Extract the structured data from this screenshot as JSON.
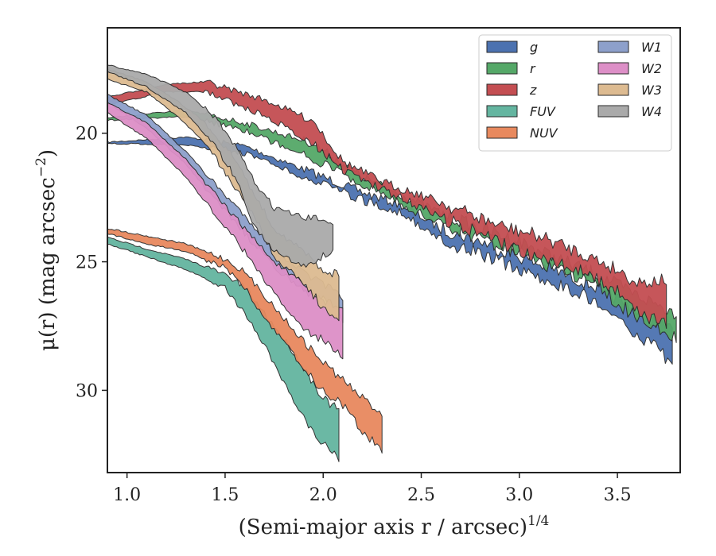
{
  "chart_data": {
    "type": "area",
    "xlabel": "(Semi-major axis r / arcsec)",
    "xlabel_exponent": "1/4",
    "ylabel": "μ(r) (mag arcsec",
    "ylabel_exponent": "−2",
    "ylabel_close": ")",
    "xlim": [
      0.9,
      3.82
    ],
    "ylim": [
      33.2,
      15.9
    ],
    "y_inverted": true,
    "xticks": [
      1.0,
      1.5,
      2.0,
      2.5,
      3.0,
      3.5
    ],
    "xtick_labels": [
      "1.0",
      "1.5",
      "2.0",
      "2.5",
      "3.0",
      "3.5"
    ],
    "yticks": [
      20,
      25,
      30
    ],
    "ytick_labels": [
      "20",
      "25",
      "30"
    ],
    "grid": false,
    "legend_position": "top-right",
    "legend_columns": 2,
    "series": [
      {
        "name": "g",
        "color": "#4c72b0",
        "upper": [
          [
            0.9,
            20.35
          ],
          [
            1.3,
            20.15
          ],
          [
            1.6,
            20.5
          ],
          [
            2.0,
            21.7
          ],
          [
            2.2,
            22.3
          ],
          [
            2.4,
            22.8
          ],
          [
            2.6,
            23.7
          ],
          [
            2.8,
            24.2
          ],
          [
            3.0,
            24.8
          ],
          [
            3.2,
            25.4
          ],
          [
            3.4,
            26.0
          ],
          [
            3.6,
            26.9
          ],
          [
            3.78,
            27.7
          ]
        ],
        "lower": [
          [
            3.78,
            28.9
          ],
          [
            3.6,
            27.8
          ],
          [
            3.4,
            26.5
          ],
          [
            3.2,
            25.9
          ],
          [
            3.0,
            25.3
          ],
          [
            2.8,
            24.7
          ],
          [
            2.6,
            24.2
          ],
          [
            2.4,
            23.1
          ],
          [
            2.2,
            22.6
          ],
          [
            2.0,
            22.0
          ],
          [
            1.6,
            20.8
          ],
          [
            1.3,
            20.45
          ],
          [
            0.9,
            20.4
          ]
        ]
      },
      {
        "name": "r",
        "color": "#55a868",
        "upper": [
          [
            0.9,
            19.4
          ],
          [
            1.3,
            19.1
          ],
          [
            1.6,
            19.6
          ],
          [
            1.95,
            20.4
          ],
          [
            2.2,
            21.7
          ],
          [
            2.4,
            22.4
          ],
          [
            2.6,
            23.1
          ],
          [
            2.8,
            23.7
          ],
          [
            3.0,
            24.2
          ],
          [
            3.2,
            24.9
          ],
          [
            3.4,
            25.5
          ],
          [
            3.6,
            26.3
          ],
          [
            3.8,
            27.0
          ]
        ],
        "lower": [
          [
            3.8,
            27.9
          ],
          [
            3.6,
            27.2
          ],
          [
            3.4,
            26.0
          ],
          [
            3.2,
            25.3
          ],
          [
            3.0,
            24.7
          ],
          [
            2.8,
            24.1
          ],
          [
            2.6,
            23.5
          ],
          [
            2.4,
            22.8
          ],
          [
            2.2,
            22.0
          ],
          [
            1.95,
            21.0
          ],
          [
            1.6,
            19.9
          ],
          [
            1.3,
            19.35
          ],
          [
            0.9,
            19.5
          ]
        ]
      },
      {
        "name": "z",
        "color": "#c44e52",
        "upper": [
          [
            0.9,
            18.6
          ],
          [
            1.2,
            18.1
          ],
          [
            1.4,
            18.0
          ],
          [
            1.7,
            18.7
          ],
          [
            1.95,
            19.5
          ],
          [
            2.1,
            21.1
          ],
          [
            2.3,
            21.9
          ],
          [
            2.5,
            22.4
          ],
          [
            2.7,
            23.0
          ],
          [
            2.9,
            23.6
          ],
          [
            3.1,
            24.0
          ],
          [
            3.3,
            24.6
          ],
          [
            3.5,
            25.3
          ],
          [
            3.6,
            25.8
          ],
          [
            3.75,
            25.7
          ]
        ],
        "lower": [
          [
            3.75,
            27.5
          ],
          [
            3.6,
            27.0
          ],
          [
            3.5,
            26.1
          ],
          [
            3.3,
            25.3
          ],
          [
            3.1,
            24.8
          ],
          [
            2.9,
            24.3
          ],
          [
            2.7,
            23.6
          ],
          [
            2.5,
            22.9
          ],
          [
            2.3,
            22.2
          ],
          [
            2.1,
            21.4
          ],
          [
            1.95,
            20.4
          ],
          [
            1.7,
            19.3
          ],
          [
            1.4,
            18.4
          ],
          [
            1.2,
            18.4
          ],
          [
            0.9,
            18.9
          ]
        ]
      },
      {
        "name": "FUV",
        "color": "#64b5a0",
        "upper": [
          [
            0.9,
            24.05
          ],
          [
            1.1,
            24.5
          ],
          [
            1.3,
            24.9
          ],
          [
            1.5,
            25.5
          ],
          [
            1.6,
            26.0
          ],
          [
            1.7,
            27.0
          ],
          [
            1.8,
            28.0
          ],
          [
            1.9,
            29.1
          ],
          [
            2.0,
            30.3
          ],
          [
            2.08,
            30.8
          ]
        ],
        "lower": [
          [
            2.08,
            32.7
          ],
          [
            2.0,
            32.1
          ],
          [
            1.9,
            31.1
          ],
          [
            1.8,
            29.7
          ],
          [
            1.7,
            28.2
          ],
          [
            1.6,
            27.0
          ],
          [
            1.5,
            26.0
          ],
          [
            1.3,
            25.3
          ],
          [
            1.1,
            24.8
          ],
          [
            0.9,
            24.3
          ]
        ]
      },
      {
        "name": "NUV",
        "color": "#e8895e",
        "upper": [
          [
            0.9,
            23.7
          ],
          [
            1.1,
            24.0
          ],
          [
            1.3,
            24.3
          ],
          [
            1.5,
            24.9
          ],
          [
            1.6,
            25.4
          ],
          [
            1.7,
            26.3
          ],
          [
            1.8,
            27.2
          ],
          [
            1.9,
            28.1
          ],
          [
            2.0,
            28.9
          ],
          [
            2.1,
            29.6
          ],
          [
            2.2,
            30.3
          ],
          [
            2.3,
            30.9
          ]
        ],
        "lower": [
          [
            2.3,
            32.3
          ],
          [
            2.2,
            31.6
          ],
          [
            2.1,
            30.6
          ],
          [
            2.0,
            30.0
          ],
          [
            1.9,
            29.2
          ],
          [
            1.8,
            28.1
          ],
          [
            1.7,
            27.2
          ],
          [
            1.6,
            26.0
          ],
          [
            1.5,
            25.2
          ],
          [
            1.3,
            24.6
          ],
          [
            1.1,
            24.3
          ],
          [
            0.9,
            23.9
          ]
        ]
      },
      {
        "name": "W1",
        "color": "#8da0cb",
        "upper": [
          [
            0.9,
            18.5
          ],
          [
            1.1,
            19.3
          ],
          [
            1.3,
            20.7
          ],
          [
            1.45,
            22.0
          ],
          [
            1.6,
            23.2
          ],
          [
            1.75,
            24.5
          ],
          [
            1.9,
            25.4
          ],
          [
            2.0,
            25.9
          ],
          [
            2.1,
            26.4
          ]
        ],
        "lower": [
          [
            2.1,
            27.2
          ],
          [
            2.0,
            26.5
          ],
          [
            1.9,
            26.1
          ],
          [
            1.75,
            25.2
          ],
          [
            1.6,
            23.9
          ],
          [
            1.45,
            22.6
          ],
          [
            1.3,
            21.2
          ],
          [
            1.1,
            19.8
          ],
          [
            0.9,
            18.8
          ]
        ]
      },
      {
        "name": "W2",
        "color": "#dd8fc7",
        "upper": [
          [
            0.9,
            18.8
          ],
          [
            1.1,
            19.6
          ],
          [
            1.3,
            21.0
          ],
          [
            1.45,
            22.4
          ],
          [
            1.6,
            23.7
          ],
          [
            1.75,
            25.0
          ],
          [
            1.9,
            25.9
          ],
          [
            2.0,
            26.5
          ],
          [
            2.1,
            26.8
          ]
        ],
        "lower": [
          [
            2.1,
            28.8
          ],
          [
            2.0,
            28.0
          ],
          [
            1.9,
            27.7
          ],
          [
            1.75,
            26.2
          ],
          [
            1.6,
            24.6
          ],
          [
            1.45,
            23.2
          ],
          [
            1.3,
            21.7
          ],
          [
            1.1,
            20.2
          ],
          [
            0.9,
            19.2
          ]
        ]
      },
      {
        "name": "W3",
        "color": "#ddbb91",
        "upper": [
          [
            0.9,
            17.5
          ],
          [
            1.1,
            18.0
          ],
          [
            1.25,
            18.7
          ],
          [
            1.4,
            19.6
          ],
          [
            1.55,
            21.0
          ],
          [
            1.65,
            22.4
          ],
          [
            1.75,
            23.7
          ],
          [
            1.9,
            24.6
          ],
          [
            2.0,
            25.3
          ],
          [
            2.08,
            25.5
          ]
        ],
        "lower": [
          [
            2.08,
            27.2
          ],
          [
            2.0,
            26.8
          ],
          [
            1.9,
            25.8
          ],
          [
            1.75,
            24.8
          ],
          [
            1.65,
            23.2
          ],
          [
            1.55,
            22.1
          ],
          [
            1.4,
            20.4
          ],
          [
            1.25,
            19.3
          ],
          [
            1.1,
            18.4
          ],
          [
            0.9,
            17.9
          ]
        ]
      },
      {
        "name": "W4",
        "color": "#aaaaaa",
        "upper": [
          [
            0.9,
            17.35
          ],
          [
            1.1,
            17.7
          ],
          [
            1.3,
            18.4
          ],
          [
            1.45,
            19.4
          ],
          [
            1.55,
            20.5
          ],
          [
            1.65,
            21.9
          ],
          [
            1.75,
            22.9
          ],
          [
            1.9,
            23.3
          ],
          [
            2.05,
            23.4
          ]
        ],
        "lower": [
          [
            2.05,
            24.6
          ],
          [
            1.9,
            25.2
          ],
          [
            1.75,
            24.6
          ],
          [
            1.65,
            23.6
          ],
          [
            1.55,
            21.7
          ],
          [
            1.45,
            20.5
          ],
          [
            1.3,
            19.2
          ],
          [
            1.1,
            18.2
          ],
          [
            0.9,
            17.6
          ]
        ]
      }
    ]
  }
}
